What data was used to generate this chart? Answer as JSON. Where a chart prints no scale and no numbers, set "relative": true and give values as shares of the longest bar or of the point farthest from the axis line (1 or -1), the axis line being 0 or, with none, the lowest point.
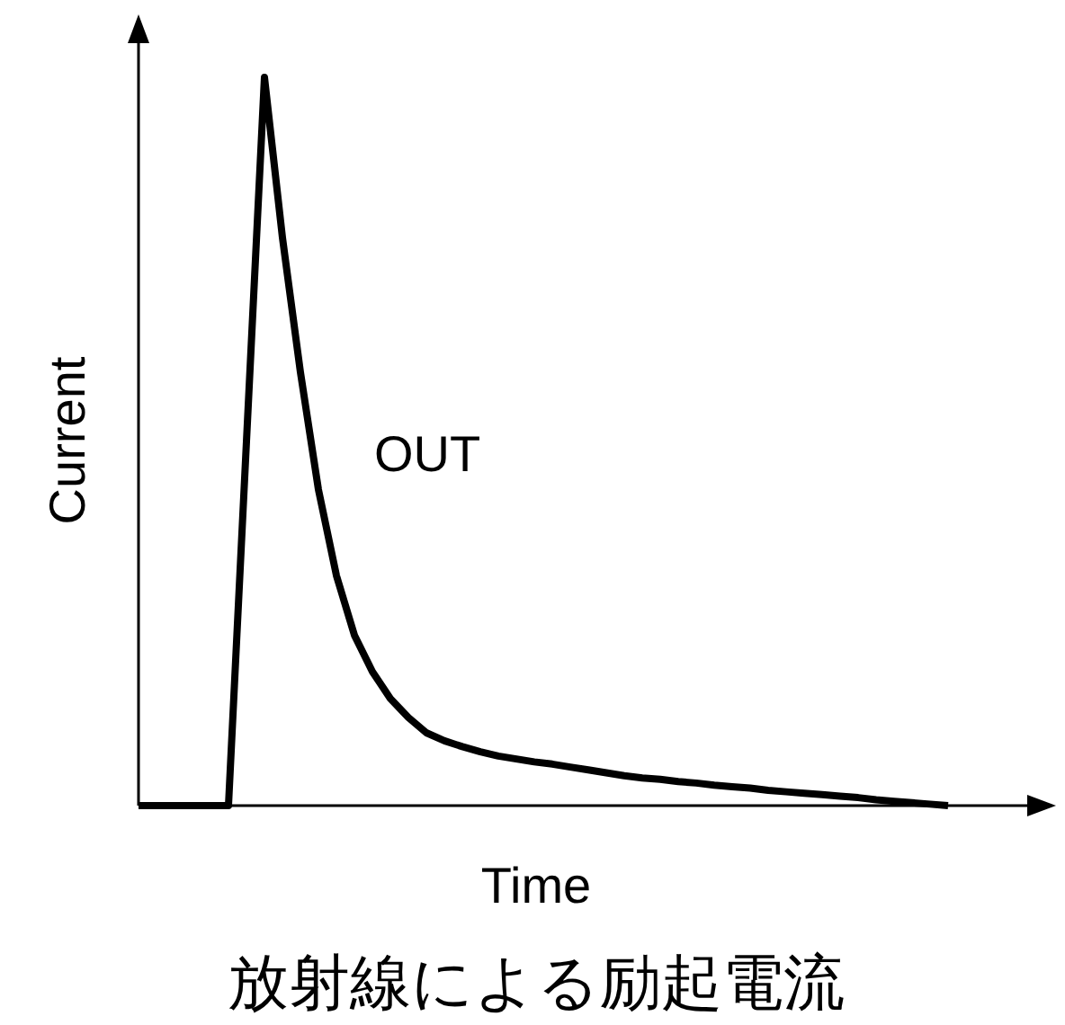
{
  "chart_data": {
    "type": "line",
    "relative": true,
    "title": "放射線による励起電流",
    "xlabel": "Time",
    "ylabel": "Current",
    "categories": [
      null,
      null,
      null,
      null,
      null,
      null,
      null,
      null,
      null,
      null,
      null,
      null,
      null,
      null,
      null,
      null,
      null,
      null,
      null,
      null,
      null,
      null,
      null,
      null,
      null,
      null,
      null,
      null,
      null,
      null,
      null,
      null,
      null,
      null,
      null,
      null,
      null,
      null,
      null,
      null,
      null,
      null,
      null,
      null,
      null,
      null,
      null,
      null,
      null,
      null,
      null,
      null
    ],
    "series": [
      {
        "name": "OUT",
        "color": "#000000",
        "values": [
          0,
          0,
          0,
          0,
          0,
          0,
          0.5,
          1,
          0.78,
          0.595,
          0.434,
          0.316,
          0.234,
          0.184,
          0.147,
          0.121,
          0.1,
          0.089,
          0.081,
          0.074,
          0.068,
          0.064,
          0.06,
          0.057,
          0.053,
          0.049,
          0.045,
          0.041,
          0.038,
          0.036,
          0.033,
          0.031,
          0.028,
          0.026,
          0.024,
          0.021,
          0.019,
          0.017,
          0.015,
          0.013,
          0.011,
          0.008,
          0.006,
          0.004,
          0.002,
          0,
          null,
          null,
          null,
          null,
          null,
          null
        ]
      }
    ]
  }
}
